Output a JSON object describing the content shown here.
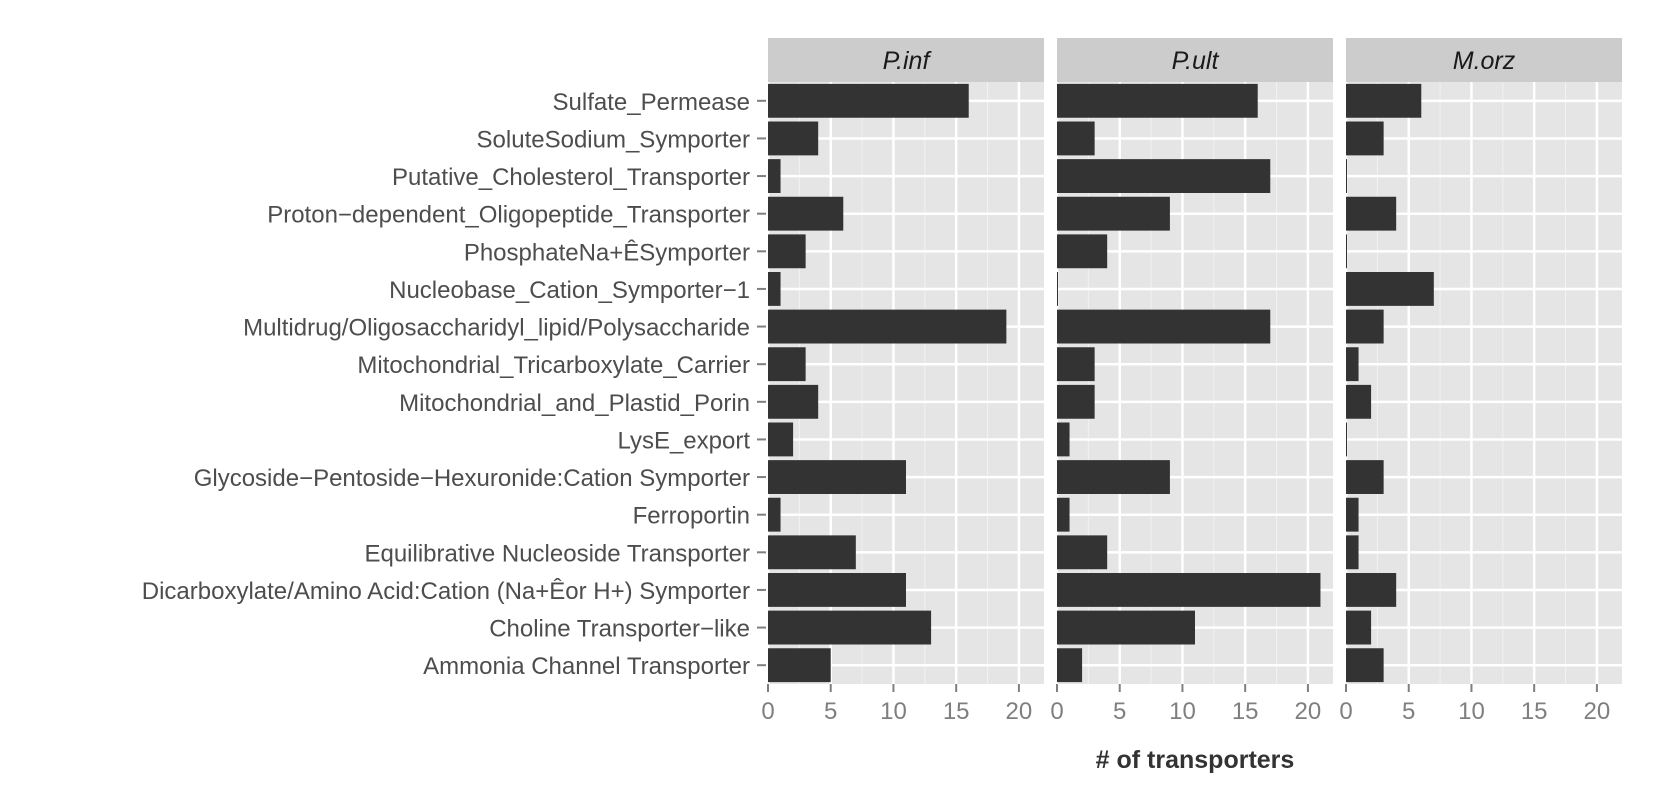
{
  "chart_data": {
    "type": "bar",
    "orientation": "horizontal",
    "xlabel": "# of transporters",
    "ylabel": "",
    "xlim": [
      0,
      22
    ],
    "xticks": [
      0,
      5,
      10,
      15,
      20
    ],
    "grid": true,
    "legend": "none",
    "categories": [
      "Sulfate_Permease",
      "SoluteSodium_Symporter",
      "Putative_Cholesterol_Transporter",
      "Proton−dependent_Oligopeptide_Transporter",
      "PhosphateNa+ÊSymporter",
      "Nucleobase_Cation_Symporter−1",
      "Multidrug/Oligosaccharidyl_lipid/Polysaccharide",
      "Mitochondrial_Tricarboxylate_Carrier",
      "Mitochondrial_and_Plastid_Porin",
      "LysE_export",
      "Glycoside−Pentoside−Hexuronide:Cation Symporter",
      "Ferroportin",
      "Equilibrative Nucleoside Transporter",
      "Dicarboxylate/Amino Acid:Cation (Na+Êor H+) Symporter",
      "Choline Transporter−like",
      "Ammonia Channel Transporter"
    ],
    "facets": [
      {
        "name": "P.inf",
        "values": [
          16,
          4,
          1,
          6,
          3,
          1,
          19,
          3,
          4,
          2,
          11,
          1,
          7,
          11,
          13,
          5
        ]
      },
      {
        "name": "P.ult",
        "values": [
          16,
          3,
          17,
          9,
          4,
          0,
          17,
          3,
          3,
          1,
          9,
          1,
          4,
          21,
          11,
          2
        ]
      },
      {
        "name": "M.orz",
        "values": [
          6,
          3,
          0,
          4,
          0,
          7,
          3,
          1,
          2,
          0,
          3,
          1,
          1,
          4,
          2,
          3
        ]
      }
    ],
    "colors": {
      "bar": "#333333",
      "panel_bg": "#e5e5e5",
      "strip_bg": "#cccccc",
      "grid_major": "#ffffff",
      "grid_minor": "#f2f2f2"
    }
  }
}
